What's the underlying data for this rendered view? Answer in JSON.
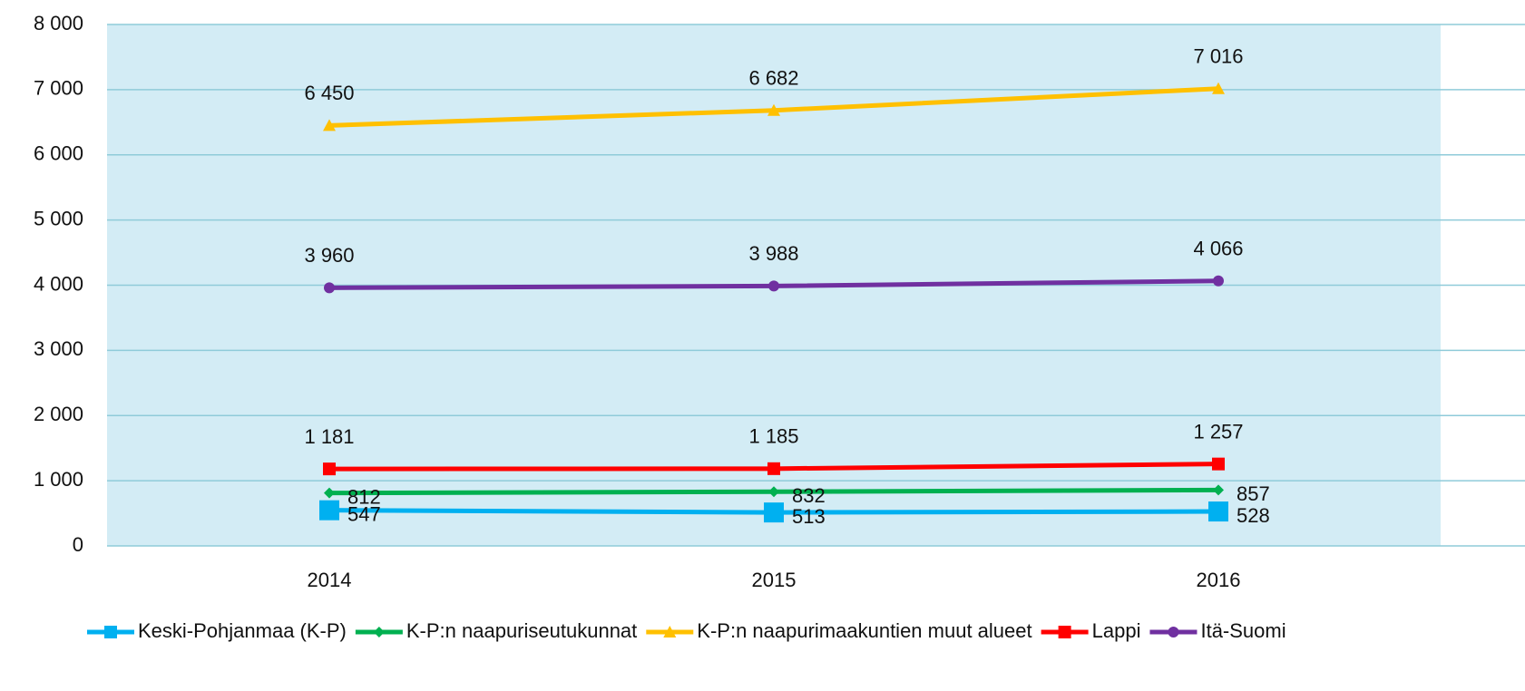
{
  "chart_data": {
    "type": "line",
    "categories": [
      "2014",
      "2015",
      "2016"
    ],
    "series": [
      {
        "name": "Keski-Pohjanmaa (K-P)",
        "color": "#00b0f0",
        "marker": "square",
        "values": [
          547,
          513,
          528
        ],
        "value_labels": [
          "547",
          "513",
          "528"
        ]
      },
      {
        "name": "K-P:n naapuriseutukunnat",
        "color": "#00b050",
        "marker": "diamond",
        "values": [
          812,
          832,
          857
        ],
        "value_labels": [
          "812",
          "832",
          "857"
        ]
      },
      {
        "name": "K-P:n naapurimaakuntien muut alueet",
        "color": "#ffc000",
        "marker": "triangle",
        "values": [
          6450,
          6682,
          7016
        ],
        "value_labels": [
          "6 450",
          "6 682",
          "7 016"
        ]
      },
      {
        "name": "Lappi",
        "color": "#ff0000",
        "marker": "square",
        "values": [
          1181,
          1185,
          1257
        ],
        "value_labels": [
          "1 181",
          "1 185",
          "1 257"
        ]
      },
      {
        "name": "Itä-Suomi",
        "color": "#7030a0",
        "marker": "circle",
        "values": [
          3960,
          3988,
          4066
        ],
        "value_labels": [
          "3 960",
          "3 988",
          "4 066"
        ]
      }
    ],
    "ylim": [
      0,
      8000
    ],
    "yticks": [
      0,
      {
        "value": 1000,
        "label": "1 000"
      },
      {
        "value": 2000,
        "label": "2 000"
      },
      {
        "value": 3000,
        "label": "3 000"
      },
      {
        "value": 4000,
        "label": "4 000"
      },
      {
        "value": 5000,
        "label": "5 000"
      },
      {
        "value": 6000,
        "label": "6 000"
      },
      {
        "value": 7000,
        "label": "7 000"
      },
      {
        "value": 8000,
        "label": "8 000"
      }
    ],
    "grid": true,
    "legend": "bottom"
  }
}
